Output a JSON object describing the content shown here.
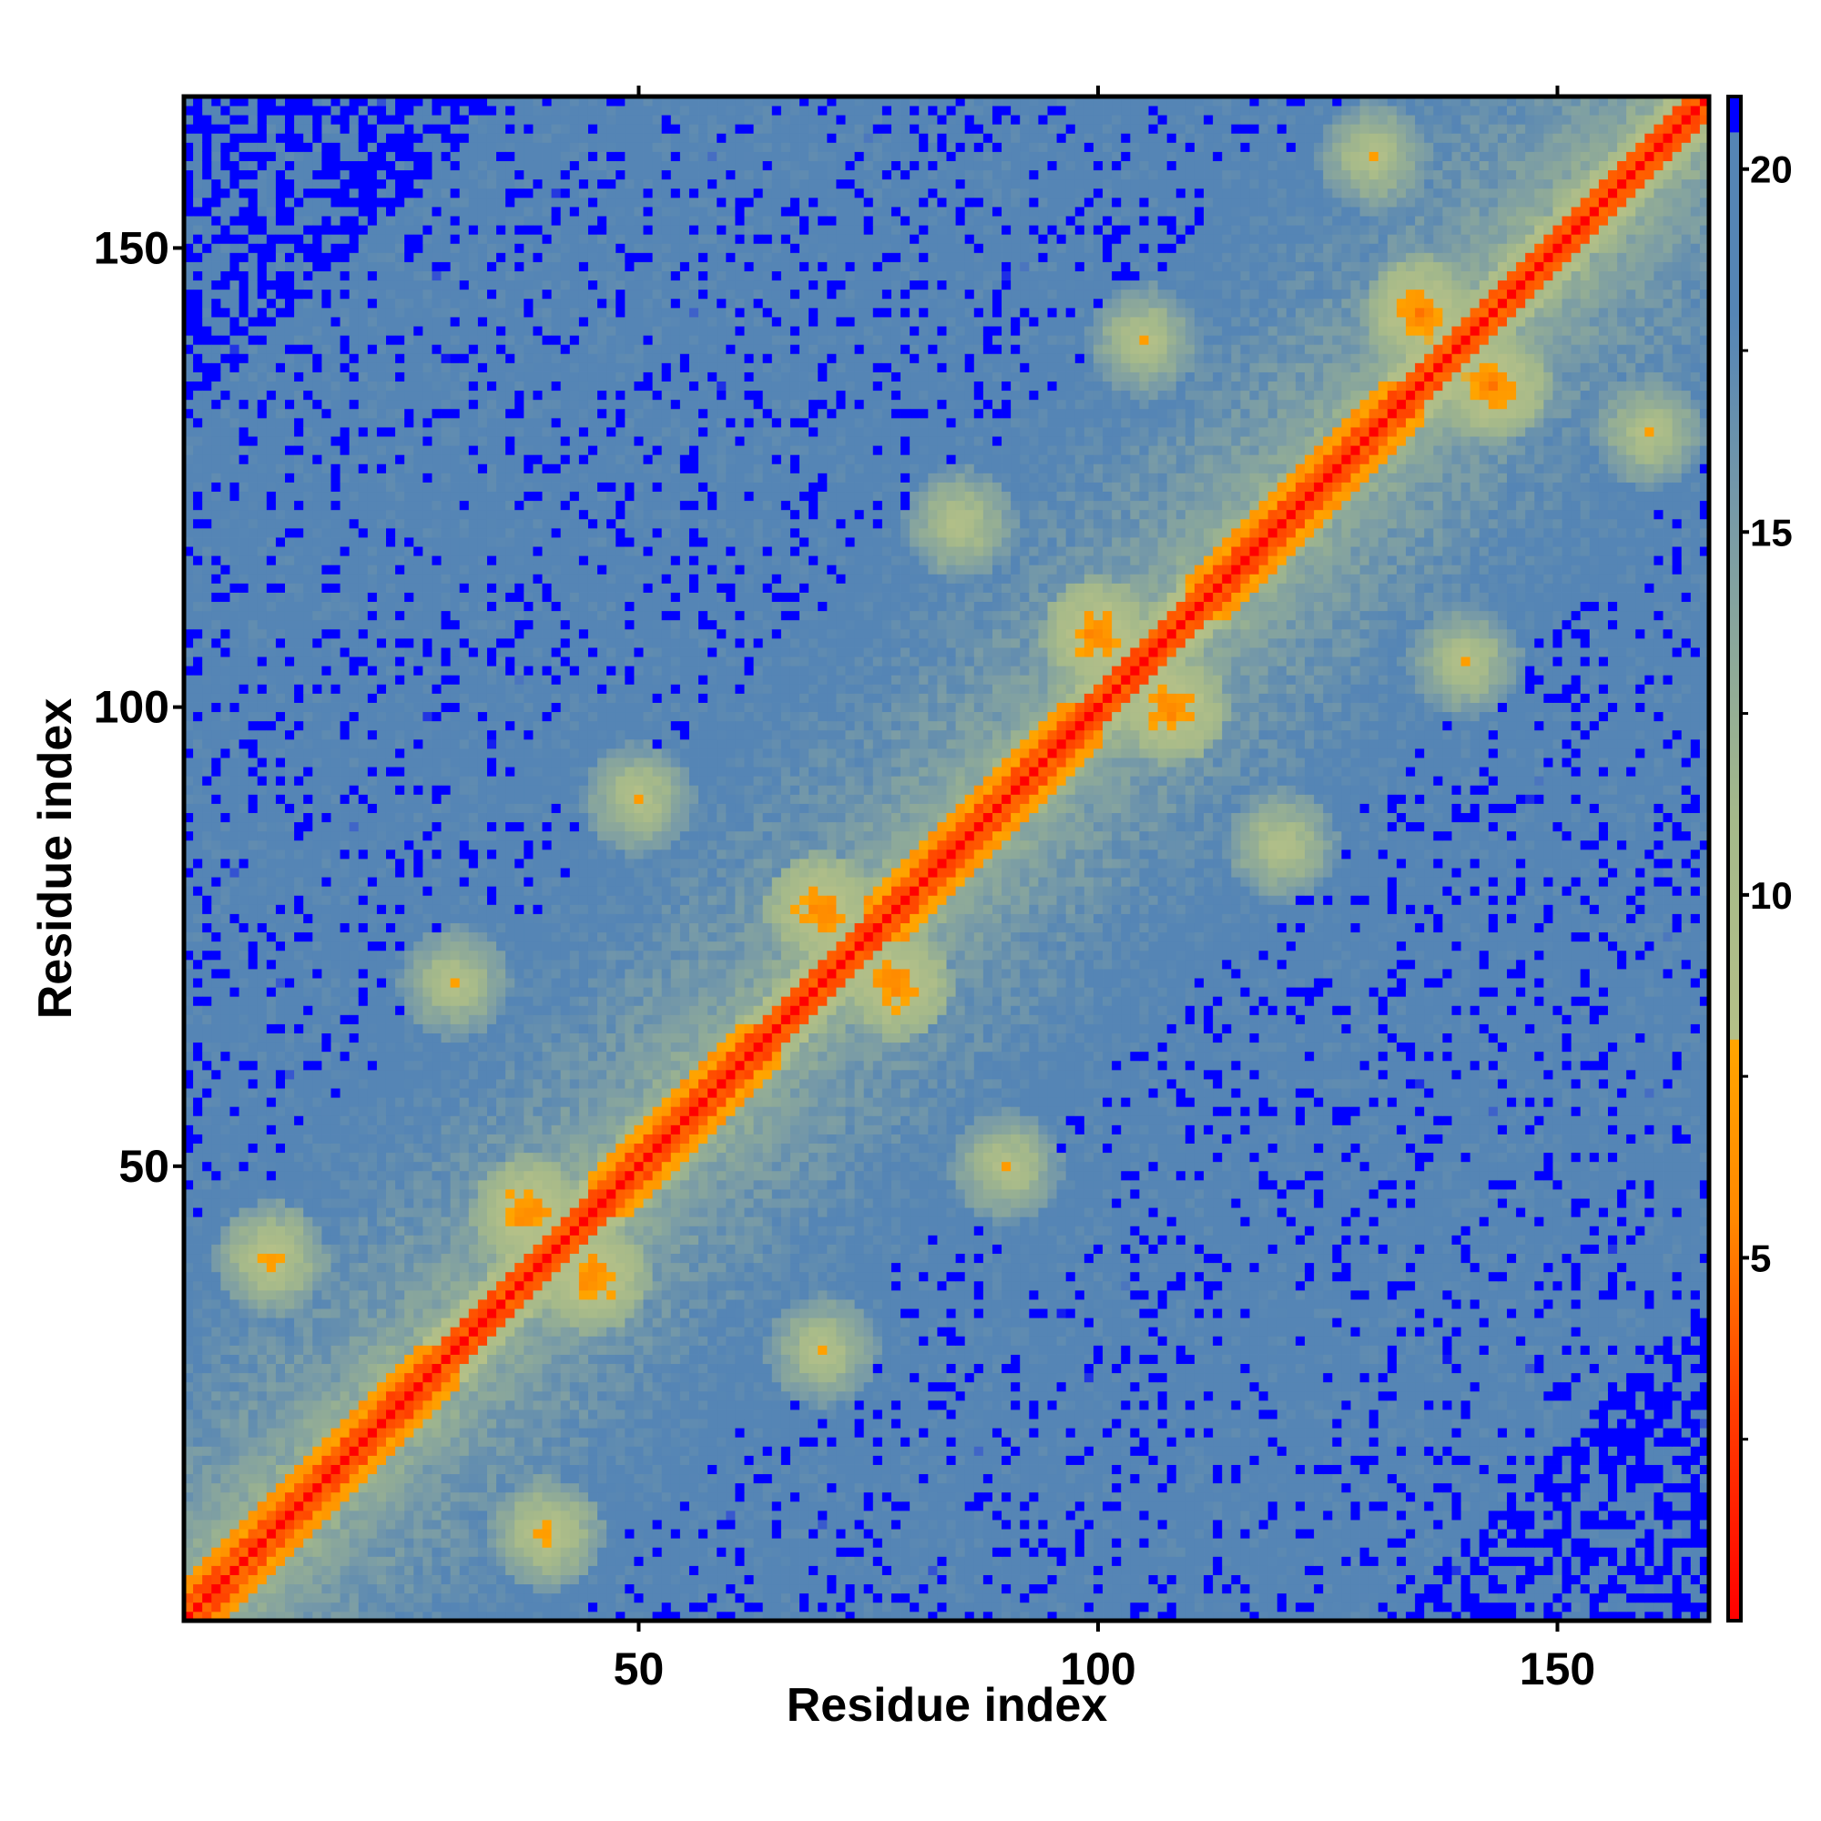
{
  "chart_data": {
    "type": "heatmap",
    "title": "",
    "xlabel": "Residue index",
    "ylabel": "Residue index",
    "n_residues": 166,
    "xlim": [
      1,
      166
    ],
    "ylim": [
      1,
      166
    ],
    "x_ticks": [
      50,
      100,
      150
    ],
    "y_ticks": [
      50,
      100,
      150
    ],
    "colorbar": {
      "ticks": [
        5,
        10,
        15,
        20
      ],
      "range": [
        0,
        21
      ],
      "colors": {
        "lowest": "#ff0000",
        "low": "#ff6600",
        "mid_low": "#ffa500",
        "mid": "#aabb88",
        "high": "#5585b5",
        "cap": "#0000ff"
      },
      "stops": [
        {
          "value": 0,
          "color": "#ff0000"
        },
        {
          "value": 3,
          "color": "#ff4000"
        },
        {
          "value": 5.5,
          "color": "#ff8800"
        },
        {
          "value": 8,
          "color": "#ffa500"
        },
        {
          "value": 8.01,
          "color": "#b4c088"
        },
        {
          "value": 11,
          "color": "#a5b98a"
        },
        {
          "value": 15,
          "color": "#7a9ca6"
        },
        {
          "value": 18,
          "color": "#5585b5"
        },
        {
          "value": 20.5,
          "color": "#5585b5"
        },
        {
          "value": 20.51,
          "color": "#0000ff"
        }
      ]
    },
    "value_description": "distance",
    "features": {
      "diagonal_helix_regions": [
        [
          1,
          30
        ],
        [
          45,
          65
        ],
        [
          75,
          100
        ],
        [
          110,
          135
        ]
      ],
      "off_diagonal_contacts": [
        {
          "i": 10,
          "j": 40,
          "value": 6
        },
        {
          "i": 30,
          "j": 70,
          "value": 7
        },
        {
          "i": 38,
          "j": 45,
          "value": 4
        },
        {
          "i": 50,
          "j": 90,
          "value": 7
        },
        {
          "i": 70,
          "j": 78,
          "value": 4
        },
        {
          "i": 85,
          "j": 120,
          "value": 7
        },
        {
          "i": 100,
          "j": 108,
          "value": 4
        },
        {
          "i": 105,
          "j": 140,
          "value": 7
        },
        {
          "i": 135,
          "j": 143,
          "value": 4
        },
        {
          "i": 130,
          "j": 160,
          "value": 7
        }
      ]
    }
  }
}
